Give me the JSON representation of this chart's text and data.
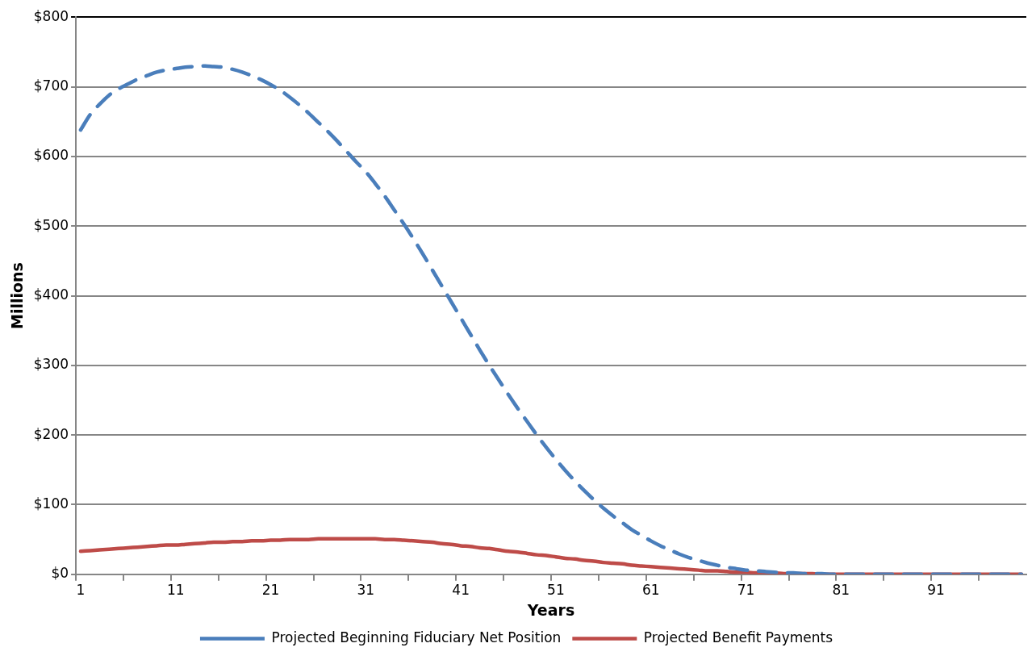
{
  "chart_data": {
    "type": "line",
    "xlabel": "Years",
    "ylabel": "Millions",
    "categories": [
      "1",
      null,
      null,
      null,
      null,
      null,
      null,
      null,
      null,
      null,
      "11",
      null,
      null,
      null,
      null,
      null,
      null,
      null,
      null,
      null,
      "21",
      null,
      null,
      null,
      null,
      null,
      null,
      null,
      null,
      null,
      "31",
      null,
      null,
      null,
      null,
      null,
      null,
      null,
      null,
      null,
      "41",
      null,
      null,
      null,
      null,
      null,
      null,
      null,
      null,
      null,
      "51",
      null,
      null,
      null,
      null,
      null,
      null,
      null,
      null,
      null,
      "61",
      null,
      null,
      null,
      null,
      null,
      null,
      null,
      null,
      null,
      "71",
      null,
      null,
      null,
      null,
      null,
      null,
      null,
      null,
      null,
      "81",
      null,
      null,
      null,
      null,
      null,
      null,
      null,
      null,
      null,
      "91",
      null,
      null,
      null,
      null,
      null,
      null,
      null,
      null,
      null
    ],
    "series": [
      {
        "name": "Projected Beginning Fiduciary Net Position",
        "color": "#4a7ebb",
        "line_style": "dashed",
        "values": [
          638,
          660,
          675,
          688,
          697,
          704,
          711,
          716,
          721,
          724,
          726,
          728,
          729,
          730,
          729,
          728,
          725,
          721,
          716,
          710,
          703,
          695,
          685,
          674,
          662,
          649,
          636,
          622,
          607,
          592,
          578,
          561,
          543,
          523,
          503,
          482,
          460,
          437,
          414,
          391,
          368,
          345,
          322,
          300,
          279,
          258,
          238,
          219,
          200,
          182,
          165,
          149,
          134,
          120,
          107,
          95,
          84,
          74,
          64,
          56,
          48,
          41,
          35,
          29,
          24,
          20,
          16,
          13,
          10,
          8,
          6,
          5,
          4,
          3,
          2,
          2,
          1,
          1,
          1,
          0,
          0,
          0,
          0,
          0,
          0,
          0,
          0,
          0,
          0,
          0,
          0,
          0,
          0,
          0,
          0,
          0,
          0,
          0,
          0,
          0
        ]
      },
      {
        "name": "Projected Benefit Payments",
        "color": "#be4b48",
        "line_style": "solid",
        "values": [
          33,
          34,
          35,
          36,
          37,
          38,
          39,
          40,
          41,
          42,
          42,
          43,
          44,
          45,
          46,
          46,
          47,
          47,
          48,
          48,
          49,
          49,
          50,
          50,
          50,
          51,
          51,
          51,
          51,
          51,
          51,
          51,
          50,
          50,
          49,
          48,
          47,
          46,
          44,
          43,
          41,
          40,
          38,
          37,
          35,
          33,
          32,
          30,
          28,
          27,
          25,
          23,
          22,
          20,
          19,
          17,
          16,
          15,
          13,
          12,
          11,
          10,
          9,
          8,
          7,
          6,
          5,
          5,
          4,
          3,
          3,
          2,
          2,
          2,
          1,
          1,
          1,
          1,
          0,
          0,
          0,
          0,
          0,
          0,
          0,
          0,
          0,
          0,
          0,
          0,
          0,
          0,
          0,
          0,
          0,
          0,
          0,
          0,
          0,
          0
        ]
      }
    ],
    "ylim": [
      0,
      800
    ],
    "yticks": [
      {
        "value": 0,
        "label": "$0"
      },
      {
        "value": 100,
        "label": "$100"
      },
      {
        "value": 200,
        "label": "$200"
      },
      {
        "value": 300,
        "label": "$300"
      },
      {
        "value": 400,
        "label": "$400"
      },
      {
        "value": 500,
        "label": "$500"
      },
      {
        "value": 600,
        "label": "$600"
      },
      {
        "value": 700,
        "label": "$700"
      },
      {
        "value": 800,
        "label": "$800"
      }
    ],
    "grid": "y",
    "legend": "bottom",
    "marker": "none"
  }
}
